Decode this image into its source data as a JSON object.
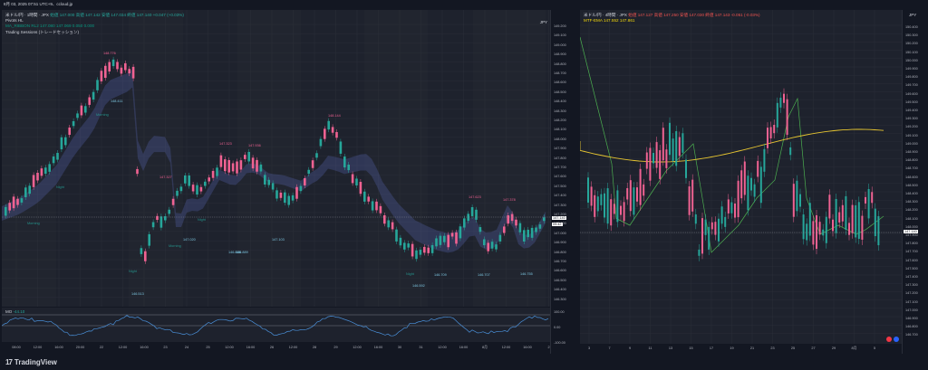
{
  "topbar": {
    "text": "8月 03, 2025 07:51 UTC+9、ccloud.jp"
  },
  "left": {
    "symbol_line": {
      "symbol": "米ドル/円 · 1時間 · JPX",
      "ohlc": "始値 147.000  高値 147.142  安値 147.034  終値 147.140  +0.047 (+0.03%)"
    },
    "ind1": "Pivots HL",
    "ind2": "MA_RIBBON RL2  147.080  147.069  0.050  0.000",
    "ind3": "Trading Sessions (トレードセッション)",
    "currency": "JPY",
    "top_tag": "MO  -44.10",
    "price_labels": [
      "149.200",
      "149.100",
      "149.000",
      "148.900",
      "148.800",
      "148.700",
      "148.600",
      "148.500",
      "148.400",
      "148.300",
      "148.200",
      "148.100",
      "148.000",
      "147.900",
      "147.800",
      "147.700",
      "147.600",
      "147.500",
      "147.400",
      "147.300",
      "147.200",
      "147.100",
      "147.000",
      "146.900",
      "146.800",
      "146.700",
      "146.600",
      "146.500",
      "146.400",
      "146.300"
    ],
    "current_price": "147.140",
    "current_symbol": "USDJPY",
    "current_time": "09:42",
    "osc_label": "MO",
    "osc_value": "-44.10",
    "osc_axis": [
      "100.00",
      "0.00",
      "-100.00"
    ],
    "time_labels": [
      "08:00",
      "12:00",
      "16:00",
      "20:00",
      "22",
      "12:00",
      "16:00",
      "23",
      "24",
      "25",
      "12:00",
      "16:00",
      "26",
      "12:00",
      "28",
      "29",
      "12:00",
      "16:00",
      "30",
      "31",
      "12:00",
      "16:00",
      "8月",
      "12:00",
      "16:00",
      "2"
    ],
    "annotations": {
      "highs": [
        {
          "t": "148.776"
        },
        {
          "t": "147.327"
        },
        {
          "t": "147.323"
        },
        {
          "t": "147.936"
        },
        {
          "t": "148.144"
        },
        {
          "t": "147.623"
        },
        {
          "t": "147.378"
        }
      ],
      "lows": [
        {
          "t": "148.411"
        },
        {
          "t": "146.513"
        },
        {
          "t": "147.020"
        },
        {
          "t": "146.888"
        },
        {
          "t": "146.889"
        },
        {
          "t": "147.103"
        },
        {
          "t": "146.592"
        },
        {
          "t": "146.709"
        },
        {
          "t": "146.707"
        },
        {
          "t": "146.755"
        }
      ],
      "sessions": [
        "Morning",
        "Morning",
        "Night",
        "Night",
        "Morning",
        "Night",
        "Night"
      ]
    }
  },
  "right": {
    "symbol_line": {
      "symbol": "米ドル/円 · 4時間 · JPX",
      "ohlc": "始値 147.127  高値 147.250  安値 147.030  終値 147.143  -0.051 (-0.03%)"
    },
    "ind1": "MTF-EMA  147.552  147.861",
    "currency": "JPY",
    "price_labels": [
      "150.400",
      "150.300",
      "150.200",
      "150.100",
      "150.000",
      "149.900",
      "149.800",
      "149.700",
      "149.600",
      "149.500",
      "149.400",
      "149.300",
      "149.200",
      "149.100",
      "149.000",
      "148.900",
      "148.800",
      "148.700",
      "148.600",
      "148.500",
      "148.400",
      "148.300",
      "148.200",
      "148.100",
      "148.000",
      "147.900",
      "147.800",
      "147.700",
      "147.600",
      "147.500",
      "147.400",
      "147.300",
      "147.200",
      "147.100",
      "147.000",
      "146.900",
      "146.800",
      "146.700"
    ],
    "current_price": "147.140",
    "current_symbol": "USDJPY",
    "time_labels": [
      "3",
      "7",
      "9",
      "11",
      "13",
      "15",
      "17",
      "19",
      "21",
      "23",
      "25",
      "27",
      "29",
      "8月",
      "5"
    ]
  },
  "footer": {
    "brand": "TradingView"
  },
  "colors": {
    "bull": "#f06292",
    "bear": "#26a69a",
    "bg": "#1e222d",
    "ema_yellow": "#e6c531",
    "ema_green": "#4caf50"
  }
}
